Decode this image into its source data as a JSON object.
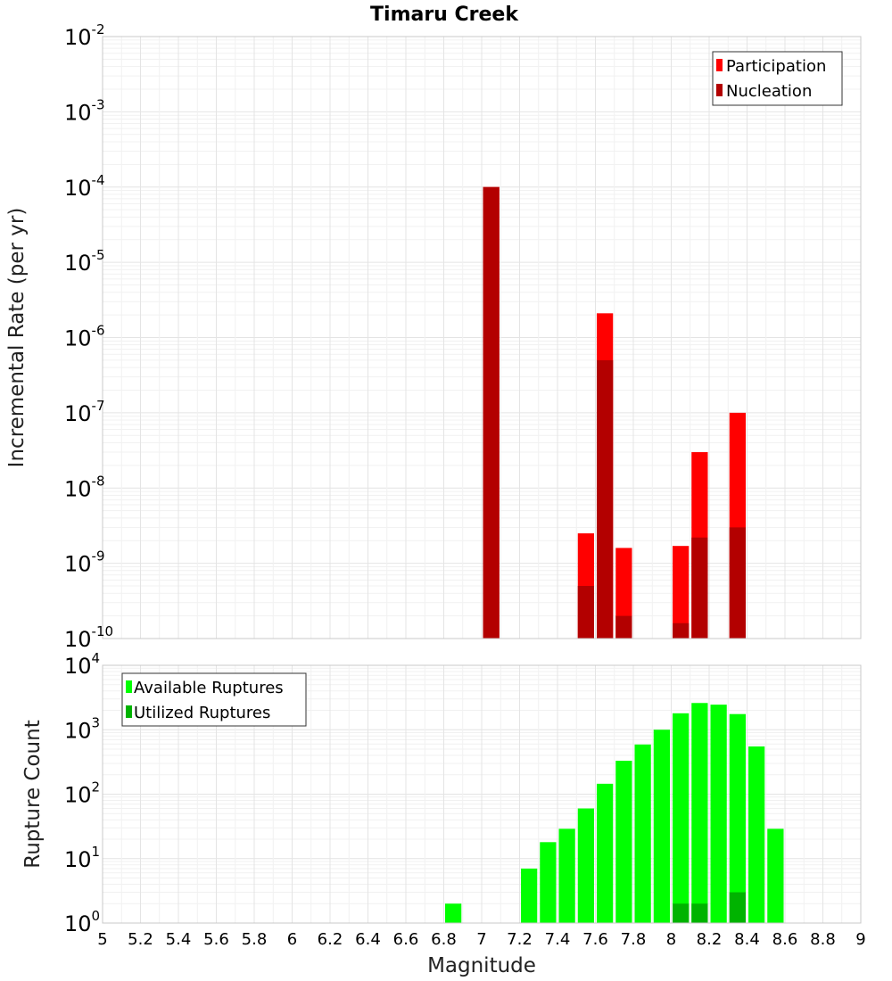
{
  "chart_data": [
    {
      "type": "bar",
      "title": "Timaru Creek",
      "xlabel": "",
      "ylabel": "Incremental Rate (per yr)",
      "scale": "log",
      "xlim": [
        5,
        9
      ],
      "ylim_exp": [
        -10,
        -2
      ],
      "bin_width": 0.1,
      "legend_position": "top-right",
      "series": [
        {
          "name": "Participation",
          "color": "#ff0000",
          "points": [
            {
              "x": 7.05,
              "y": 0.0001
            },
            {
              "x": 7.55,
              "y": 2.5e-09
            },
            {
              "x": 7.65,
              "y": 2.1e-06
            },
            {
              "x": 7.75,
              "y": 1.6e-09
            },
            {
              "x": 8.05,
              "y": 1.7e-09
            },
            {
              "x": 8.15,
              "y": 3e-08
            },
            {
              "x": 8.35,
              "y": 1e-07
            }
          ]
        },
        {
          "name": "Nucleation",
          "color": "#b30000",
          "points": [
            {
              "x": 7.05,
              "y": 0.0001
            },
            {
              "x": 7.55,
              "y": 5e-10
            },
            {
              "x": 7.65,
              "y": 5e-07
            },
            {
              "x": 7.75,
              "y": 2e-10
            },
            {
              "x": 8.05,
              "y": 1.6e-10
            },
            {
              "x": 8.15,
              "y": 2.2e-09
            },
            {
              "x": 8.35,
              "y": 3e-09
            }
          ]
        }
      ]
    },
    {
      "type": "bar",
      "title": "",
      "xlabel": "Magnitude",
      "ylabel": "Rupture Count",
      "scale": "log",
      "xlim": [
        5,
        9
      ],
      "ylim_exp": [
        0,
        4
      ],
      "bin_width": 0.1,
      "legend_position": "top-left",
      "x_ticks": [
        "5",
        "5.2",
        "5.4",
        "5.6",
        "5.8",
        "6",
        "6.2",
        "6.4",
        "6.6",
        "6.8",
        "7",
        "7.2",
        "7.4",
        "7.6",
        "7.8",
        "8",
        "8.2",
        "8.4",
        "8.6",
        "8.8",
        "9"
      ],
      "series": [
        {
          "name": "Available Ruptures",
          "color": "#00ff00",
          "points": [
            {
              "x": 6.85,
              "y": 2
            },
            {
              "x": 7.05,
              "y": 1
            },
            {
              "x": 7.15,
              "y": 1
            },
            {
              "x": 7.25,
              "y": 7
            },
            {
              "x": 7.35,
              "y": 18
            },
            {
              "x": 7.45,
              "y": 29
            },
            {
              "x": 7.55,
              "y": 60
            },
            {
              "x": 7.65,
              "y": 145
            },
            {
              "x": 7.75,
              "y": 330
            },
            {
              "x": 7.85,
              "y": 590
            },
            {
              "x": 7.95,
              "y": 1000
            },
            {
              "x": 8.05,
              "y": 1800
            },
            {
              "x": 8.15,
              "y": 2600
            },
            {
              "x": 8.25,
              "y": 2450
            },
            {
              "x": 8.35,
              "y": 1750
            },
            {
              "x": 8.45,
              "y": 550
            },
            {
              "x": 8.55,
              "y": 29
            }
          ]
        },
        {
          "name": "Utilized Ruptures",
          "color": "#00b300",
          "points": [
            {
              "x": 7.05,
              "y": 1
            },
            {
              "x": 7.55,
              "y": 1
            },
            {
              "x": 7.65,
              "y": 1
            },
            {
              "x": 7.75,
              "y": 1
            },
            {
              "x": 8.05,
              "y": 2
            },
            {
              "x": 8.15,
              "y": 2
            },
            {
              "x": 8.35,
              "y": 3
            }
          ]
        }
      ]
    }
  ]
}
